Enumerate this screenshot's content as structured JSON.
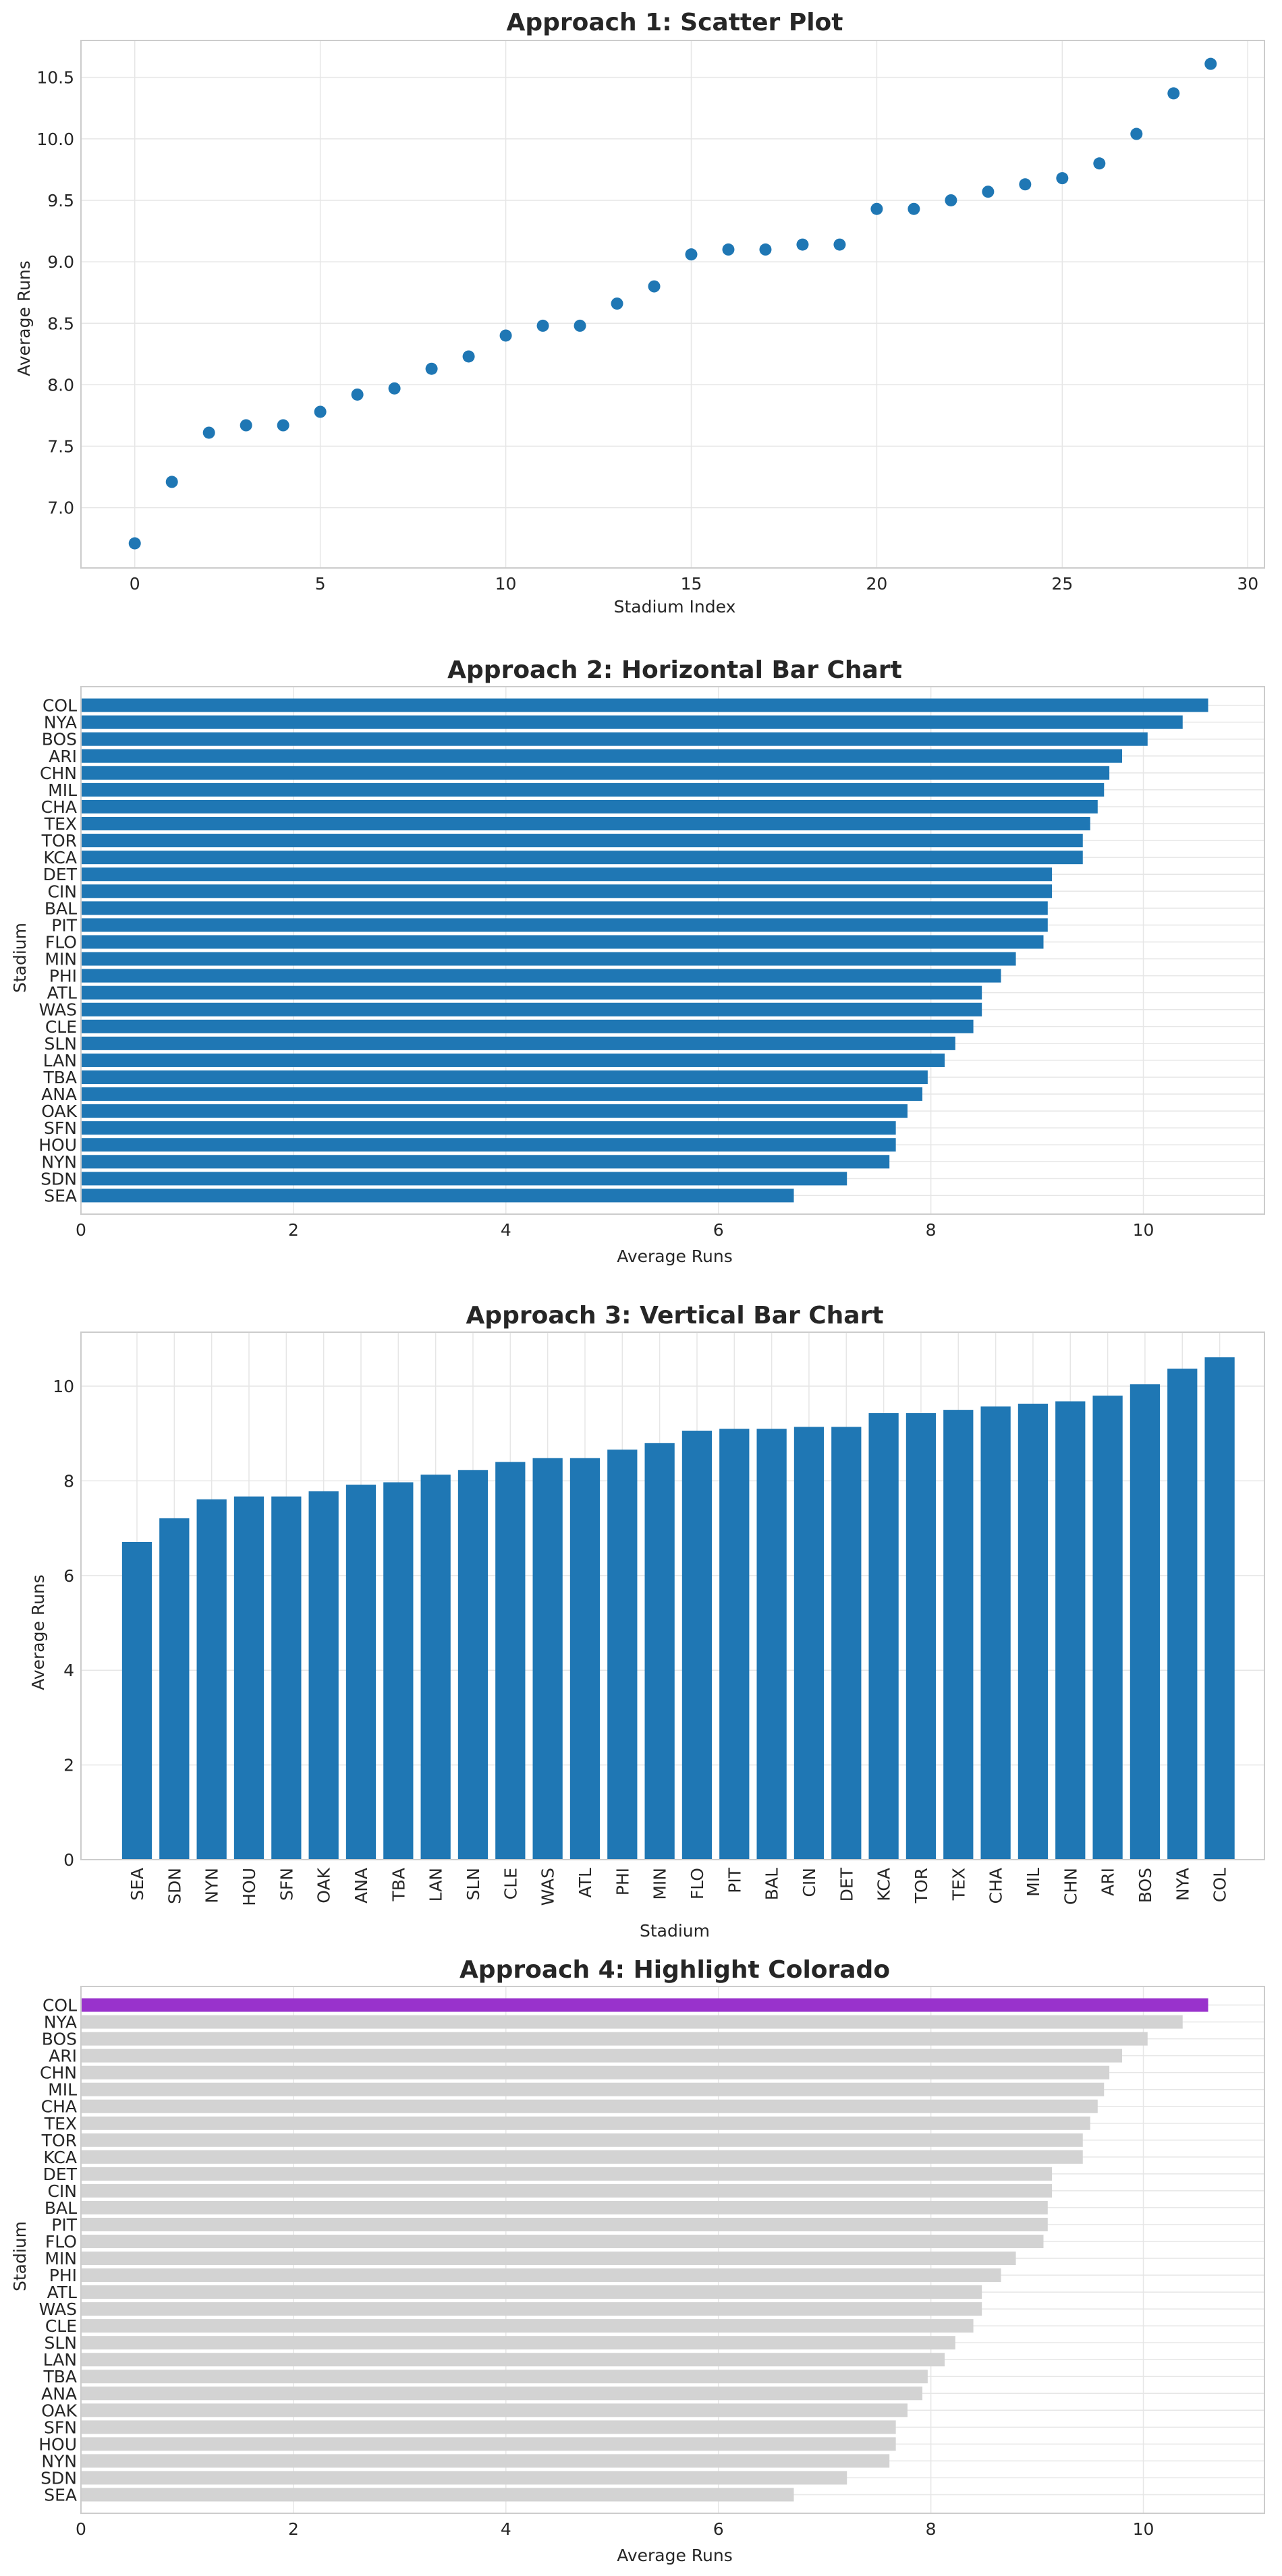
{
  "colors": {
    "bar": "#1f77b4",
    "highlight": "#9932cc",
    "muted": "#d3d3d3"
  },
  "chart_data": [
    {
      "type": "scatter",
      "title": "Approach 1: Scatter Plot",
      "xlabel": "Stadium Index",
      "ylabel": "Average Runs",
      "grid": true,
      "xlim": [
        -1.45,
        30.45
      ],
      "ylim": [
        6.51,
        10.8
      ],
      "xticks": [
        0,
        5,
        10,
        15,
        20,
        25,
        30
      ],
      "yticks": [
        "7.0",
        "7.5",
        "8.0",
        "8.5",
        "9.0",
        "9.5",
        "10.0",
        "10.5"
      ],
      "x": [
        0,
        1,
        2,
        3,
        4,
        5,
        6,
        7,
        8,
        9,
        10,
        11,
        12,
        13,
        14,
        15,
        16,
        17,
        18,
        19,
        20,
        21,
        22,
        23,
        24,
        25,
        26,
        27,
        28,
        29
      ],
      "y": [
        6.71,
        7.21,
        7.61,
        7.67,
        7.67,
        7.78,
        7.92,
        7.97,
        8.13,
        8.23,
        8.4,
        8.48,
        8.48,
        8.66,
        8.8,
        9.06,
        9.1,
        9.1,
        9.14,
        9.14,
        9.43,
        9.43,
        9.5,
        9.57,
        9.63,
        9.68,
        9.8,
        10.04,
        10.37,
        10.61
      ]
    },
    {
      "type": "bar",
      "orientation": "horizontal",
      "title": "Approach 2: Horizontal Bar Chart",
      "xlabel": "Average Runs",
      "ylabel": "Stadium",
      "grid": true,
      "xlim": [
        0,
        11.14
      ],
      "xticks": [
        0,
        2,
        4,
        6,
        8,
        10
      ],
      "categories": [
        "SEA",
        "SDN",
        "NYN",
        "HOU",
        "SFN",
        "OAK",
        "ANA",
        "TBA",
        "LAN",
        "SLN",
        "CLE",
        "WAS",
        "ATL",
        "PHI",
        "MIN",
        "FLO",
        "PIT",
        "BAL",
        "CIN",
        "DET",
        "KCA",
        "TOR",
        "TEX",
        "CHA",
        "MIL",
        "CHN",
        "ARI",
        "BOS",
        "NYA",
        "COL"
      ],
      "values": [
        6.71,
        7.21,
        7.61,
        7.67,
        7.67,
        7.78,
        7.92,
        7.97,
        8.13,
        8.23,
        8.4,
        8.48,
        8.48,
        8.66,
        8.8,
        9.06,
        9.1,
        9.1,
        9.14,
        9.14,
        9.43,
        9.43,
        9.5,
        9.57,
        9.63,
        9.68,
        9.8,
        10.04,
        10.37,
        10.61
      ]
    },
    {
      "type": "bar",
      "orientation": "vertical",
      "title": "Approach 3: Vertical Bar Chart",
      "xlabel": "Stadium",
      "ylabel": "Average Runs",
      "grid": true,
      "ylim": [
        0,
        11.14
      ],
      "yticks": [
        0,
        2,
        4,
        6,
        8,
        10
      ],
      "categories": [
        "SEA",
        "SDN",
        "NYN",
        "HOU",
        "SFN",
        "OAK",
        "ANA",
        "TBA",
        "LAN",
        "SLN",
        "CLE",
        "WAS",
        "ATL",
        "PHI",
        "MIN",
        "FLO",
        "PIT",
        "BAL",
        "CIN",
        "DET",
        "KCA",
        "TOR",
        "TEX",
        "CHA",
        "MIL",
        "CHN",
        "ARI",
        "BOS",
        "NYA",
        "COL"
      ],
      "values": [
        6.71,
        7.21,
        7.61,
        7.67,
        7.67,
        7.78,
        7.92,
        7.97,
        8.13,
        8.23,
        8.4,
        8.48,
        8.48,
        8.66,
        8.8,
        9.06,
        9.1,
        9.1,
        9.14,
        9.14,
        9.43,
        9.43,
        9.5,
        9.57,
        9.63,
        9.68,
        9.8,
        10.04,
        10.37,
        10.61
      ]
    },
    {
      "type": "bar",
      "orientation": "horizontal",
      "title": "Approach 4: Highlight Colorado",
      "xlabel": "Average Runs",
      "ylabel": "Stadium",
      "grid": true,
      "highlight": "COL",
      "xlim": [
        0,
        11.14
      ],
      "xticks": [
        0,
        2,
        4,
        6,
        8,
        10
      ],
      "categories": [
        "SEA",
        "SDN",
        "NYN",
        "HOU",
        "SFN",
        "OAK",
        "ANA",
        "TBA",
        "LAN",
        "SLN",
        "CLE",
        "WAS",
        "ATL",
        "PHI",
        "MIN",
        "FLO",
        "PIT",
        "BAL",
        "CIN",
        "DET",
        "KCA",
        "TOR",
        "TEX",
        "CHA",
        "MIL",
        "CHN",
        "ARI",
        "BOS",
        "NYA",
        "COL"
      ],
      "values": [
        6.71,
        7.21,
        7.61,
        7.67,
        7.67,
        7.78,
        7.92,
        7.97,
        8.13,
        8.23,
        8.4,
        8.48,
        8.48,
        8.66,
        8.8,
        9.06,
        9.1,
        9.1,
        9.14,
        9.14,
        9.43,
        9.43,
        9.5,
        9.57,
        9.63,
        9.68,
        9.8,
        10.04,
        10.37,
        10.61
      ]
    }
  ]
}
